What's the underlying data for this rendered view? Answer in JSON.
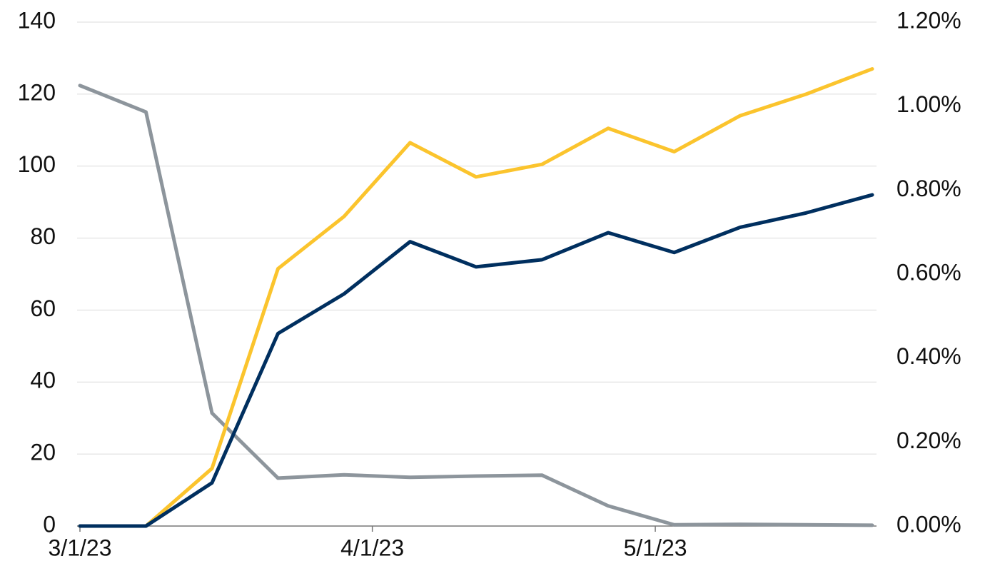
{
  "chart_data": {
    "type": "line",
    "x": [
      "3/1/23",
      "3/8/23",
      "3/15/23",
      "3/22/23",
      "3/29/23",
      "4/5/23",
      "4/12/23",
      "4/19/23",
      "4/26/23",
      "5/3/23",
      "5/10/23",
      "5/17/23",
      "5/24/23"
    ],
    "xlim": [
      "3/1/23",
      "5/24/23"
    ],
    "xticks": [
      "3/1/23",
      "4/1/23",
      "5/1/23"
    ],
    "ylim": [
      0,
      140
    ],
    "yticks": [
      0,
      20,
      40,
      60,
      80,
      100,
      120,
      140
    ],
    "y2lim": [
      0,
      1.2
    ],
    "y2ticks": [
      {
        "value": 0,
        "label": "0.00%"
      },
      {
        "value": 0.2,
        "label": "0.20%"
      },
      {
        "value": 0.4,
        "label": "0.40%"
      },
      {
        "value": 0.6,
        "label": "0.60%"
      },
      {
        "value": 0.8,
        "label": "0.80%"
      },
      {
        "value": 1.0,
        "label": "1.00%"
      },
      {
        "value": 1.2,
        "label": "1.20%"
      }
    ],
    "grid": true,
    "series": [
      {
        "color": "#8d959c",
        "axis": "y2",
        "values": [
          1.049,
          0.986,
          0.269,
          0.114,
          0.122,
          0.116,
          0.119,
          0.121,
          0.048,
          0.003,
          0.004,
          0.003,
          0.002
        ]
      },
      {
        "color": "#fbc42d",
        "values": [
          0,
          0,
          16,
          71.5,
          86,
          106.5,
          97,
          100.5,
          110.5,
          104,
          114,
          120,
          127
        ]
      },
      {
        "color": "#002f5f",
        "values": [
          0,
          0,
          12,
          53.5,
          64.5,
          79,
          72,
          74,
          81.5,
          76,
          83,
          87,
          92
        ]
      }
    ]
  }
}
